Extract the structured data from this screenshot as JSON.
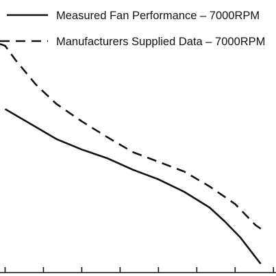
{
  "chart_data": {
    "type": "line",
    "legend_placement": "top-right",
    "grid": false,
    "series": [
      {
        "name": "Measured Fan Performance – 7000RPM",
        "dash": "solid",
        "color": "#111111",
        "points": [
          [
            0.0,
            0.76
          ],
          [
            0.5,
            0.59
          ],
          [
            1.0,
            0.42
          ],
          [
            1.5,
            0.3
          ],
          [
            2.0,
            0.2
          ],
          [
            2.5,
            0.07
          ],
          [
            3.0,
            -0.04
          ],
          [
            3.5,
            -0.18
          ],
          [
            4.0,
            -0.36
          ],
          [
            4.3,
            -0.52
          ],
          [
            4.6,
            -0.7
          ],
          [
            5.0,
            -1.0
          ]
        ]
      },
      {
        "name": "Manufacturers Supplied Data – 7000RPM",
        "dash": "dashed",
        "color": "#111111",
        "points": [
          [
            -0.1,
            1.5
          ],
          [
            0.0,
            1.48
          ],
          [
            0.2,
            1.32
          ],
          [
            0.6,
            1.04
          ],
          [
            1.0,
            0.82
          ],
          [
            1.5,
            0.62
          ],
          [
            2.0,
            0.44
          ],
          [
            2.5,
            0.27
          ],
          [
            3.0,
            0.16
          ],
          [
            3.5,
            0.05
          ],
          [
            4.0,
            -0.12
          ],
          [
            4.5,
            -0.32
          ],
          [
            4.9,
            -0.56
          ],
          [
            5.1,
            -0.64
          ]
        ]
      }
    ],
    "xlim": [
      -0.1,
      5.3
    ],
    "ylim": [
      -1.1,
      2.0
    ],
    "xticks": [
      0,
      0.75,
      1.5,
      2.25,
      3.0,
      3.75,
      4.5,
      5.25
    ],
    "xlabel": "",
    "ylabel": "",
    "title": ""
  }
}
